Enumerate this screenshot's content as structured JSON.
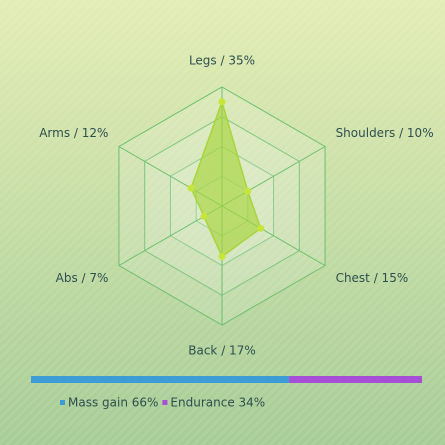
{
  "chart_data": [
    {
      "type": "radar",
      "categories": [
        "Legs / 35%",
        "Shoulders / 10%",
        "Chest / 15%",
        "Back / 17%",
        "Abs / 7%",
        "Arms / 12%"
      ],
      "values": [
        35,
        10,
        15,
        17,
        7,
        12
      ],
      "color": "#a8d43c",
      "rlim": [
        0,
        40
      ],
      "rticks": [
        10,
        20,
        30,
        40
      ],
      "grid": true
    },
    {
      "type": "stacked-bar",
      "series": [
        {
          "name": "Mass gain 66%",
          "color": "#3d9bd6",
          "values": [
            66
          ]
        },
        {
          "name": "Endurance 34%",
          "color": "#a64fd6",
          "values": [
            34
          ]
        }
      ],
      "legend": "bottom-left"
    }
  ]
}
